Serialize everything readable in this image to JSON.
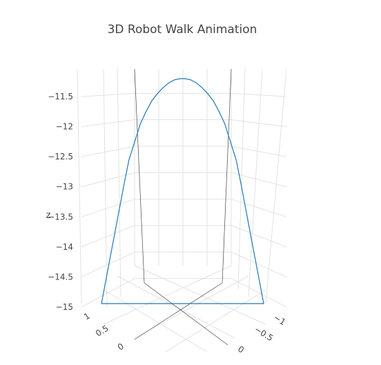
{
  "chart_data": {
    "type": "line",
    "title": "3D Robot Walk Animation",
    "zlabel": "z",
    "z_ticks": [
      "−11.5",
      "−12",
      "−12.5",
      "−13",
      "−13.5",
      "−14",
      "−14.5",
      "−15"
    ],
    "z_tick_values": [
      -11.5,
      -12,
      -12.5,
      -13,
      -13.5,
      -14,
      -14.5,
      -15
    ],
    "x_ticks": [
      "1",
      "0.5",
      "0"
    ],
    "y_ticks": [
      "−1",
      "−0.5",
      "0"
    ],
    "zlim": [
      -15,
      -11.25
    ],
    "series": [
      {
        "color": "#1f77b4",
        "x": [
          0.95,
          0.95,
          0.95,
          0.95,
          0.95,
          0.95,
          0.95,
          0.95,
          0.95,
          0.95,
          0.95,
          0.95,
          0.95,
          0.95,
          0.95,
          0.95,
          0.95,
          0.95,
          0.95,
          0.95,
          0.95,
          0.95,
          0.95,
          0.95,
          0.95,
          0.95,
          0.95,
          0.95,
          0.95,
          0.95
        ],
        "y": [
          -1,
          -0.93,
          -0.86,
          -0.79,
          -0.72,
          -0.66,
          -0.59,
          -0.52,
          -0.45,
          -0.38,
          -0.31,
          -0.24,
          -0.17,
          -0.1,
          -0.03,
          0.03,
          0.1,
          0.17,
          0.24,
          0.31,
          0.38,
          0.45,
          0.52,
          0.59,
          0.66,
          0.72,
          0.79,
          0.86,
          0.93,
          1
        ],
        "z": [
          -15,
          -14.5,
          -14,
          -13.5,
          -13,
          -12.6,
          -12.3,
          -12.0,
          -11.8,
          -11.62,
          -11.5,
          -11.4,
          -11.32,
          -11.27,
          -11.25,
          -11.25,
          -11.27,
          -11.32,
          -11.4,
          -11.5,
          -11.62,
          -11.8,
          -12.0,
          -12.3,
          -12.6,
          -13,
          -13.5,
          -14,
          -14.5,
          -15
        ]
      }
    ]
  }
}
